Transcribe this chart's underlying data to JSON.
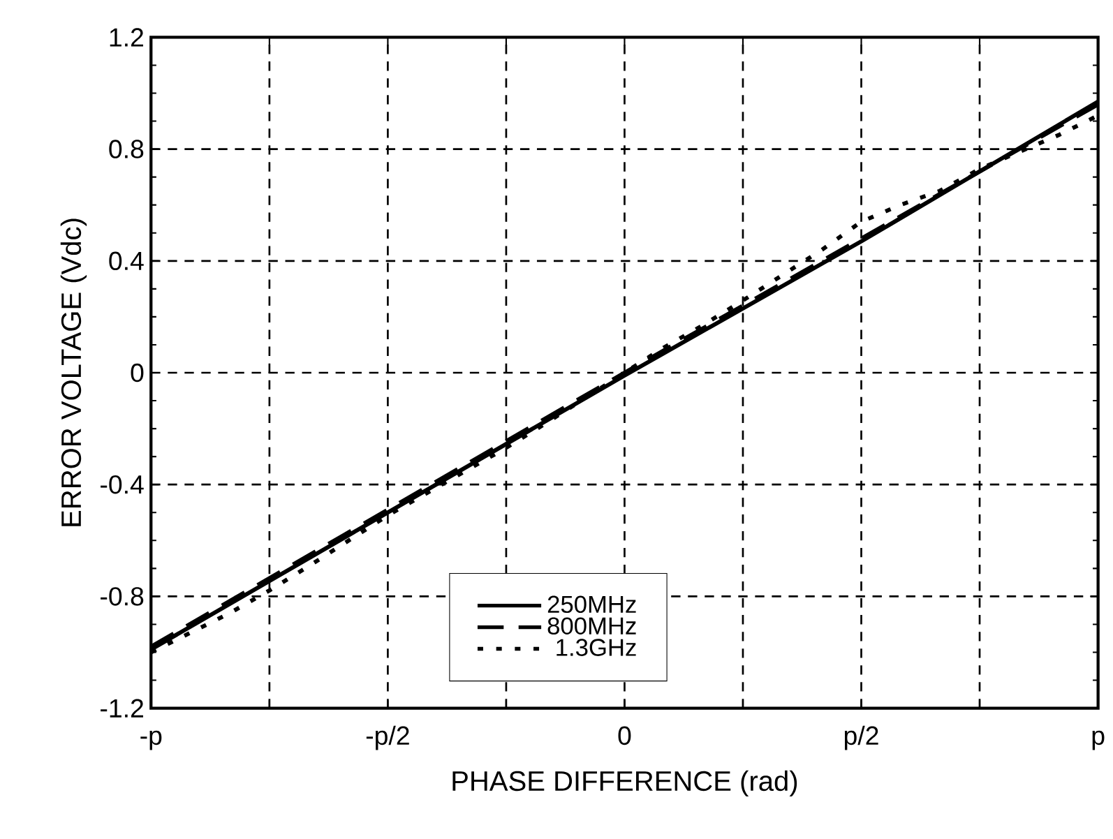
{
  "chart_data": {
    "type": "line",
    "xlabel": "PHASE DIFFERENCE (rad)",
    "ylabel": "ERROR VOLTAGE (Vdc)",
    "xlim": [
      -3.142,
      3.142
    ],
    "ylim": [
      -1.2,
      1.2
    ],
    "xticks": [
      {
        "value": -3.142,
        "label": "-p"
      },
      {
        "value": -2.3562,
        "label": null
      },
      {
        "value": -1.5708,
        "label": "-p/2"
      },
      {
        "value": -0.7854,
        "label": null
      },
      {
        "value": 0,
        "label": "0"
      },
      {
        "value": 0.7854,
        "label": null
      },
      {
        "value": 1.5708,
        "label": "p/2"
      },
      {
        "value": 2.3562,
        "label": null
      },
      {
        "value": 3.142,
        "label": "p"
      }
    ],
    "yticks": [
      -1.2,
      -0.8,
      -0.4,
      0,
      0.4,
      0.8,
      1.2
    ],
    "grid": true,
    "legend": "bottom",
    "marker": "none",
    "series": [
      {
        "name": "250MHz",
        "color": "#000000",
        "line_style": "solid",
        "x": [
          -3.142,
          -1.571,
          0,
          1.571,
          3.142
        ],
        "values": [
          -0.99,
          -0.5,
          -0.01,
          0.47,
          0.97
        ]
      },
      {
        "name": "800MHz",
        "color": "#000000",
        "line_style": "dashed",
        "x": [
          -3.142,
          -1.571,
          0,
          1.571,
          3.142
        ],
        "values": [
          -0.98,
          -0.49,
          0.0,
          0.48,
          0.96
        ]
      },
      {
        "name": "1.3GHz",
        "color": "#000000",
        "line_style": "dotted",
        "x": [
          -3.142,
          -2.88,
          -2.62,
          -2.36,
          -2.09,
          -1.83,
          -1.57,
          -1.31,
          -1.05,
          -0.79,
          -0.52,
          -0.26,
          0,
          0.26,
          0.52,
          0.79,
          1.05,
          1.31,
          1.57,
          1.83,
          2.09,
          2.36,
          2.62,
          2.88,
          3.142
        ],
        "values": [
          -1.0,
          -0.93,
          -0.86,
          -0.78,
          -0.69,
          -0.6,
          -0.51,
          -0.43,
          -0.35,
          -0.27,
          -0.18,
          -0.09,
          0.0,
          0.09,
          0.17,
          0.26,
          0.35,
          0.44,
          0.54,
          0.6,
          0.65,
          0.73,
          0.79,
          0.85,
          0.92
        ]
      }
    ]
  }
}
